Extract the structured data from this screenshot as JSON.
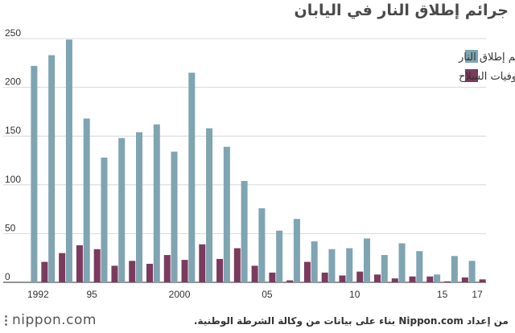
{
  "title": "جرائم إطلاق النار في اليابان",
  "source": "من إعداد Nippon.com بناء على بيانات من وكالة الشرطة الوطنية.",
  "brand": "nippon.com",
  "chart_data": {
    "type": "bar",
    "categories": [
      "1992",
      "1993",
      "1994",
      "1995",
      "1996",
      "1997",
      "1998",
      "1999",
      "2000",
      "2001",
      "2002",
      "2003",
      "2004",
      "2005",
      "2006",
      "2007",
      "2008",
      "2009",
      "2010",
      "2011",
      "2012",
      "2013",
      "2014",
      "2015",
      "2016",
      "2017"
    ],
    "tick_labels": [
      {
        "index": 0,
        "label": "1992"
      },
      {
        "index": 3,
        "label": "95"
      },
      {
        "index": 8,
        "label": "2000"
      },
      {
        "index": 13,
        "label": "05"
      },
      {
        "index": 18,
        "label": "10"
      },
      {
        "index": 23,
        "label": "15"
      },
      {
        "index": 25,
        "label": "17"
      }
    ],
    "series": [
      {
        "name": "جرائم إطلاق النار",
        "color": "#7fa4b2",
        "values": [
          222,
          233,
          249,
          168,
          128,
          148,
          154,
          162,
          134,
          215,
          158,
          139,
          104,
          76,
          53,
          65,
          42,
          34,
          35,
          45,
          28,
          40,
          32,
          8,
          27,
          22
        ]
      },
      {
        "name": "وفيات السلاح",
        "color": "#7b3a5e",
        "values": [
          21,
          30,
          38,
          34,
          17,
          22,
          19,
          28,
          23,
          39,
          24,
          35,
          17,
          10,
          2,
          21,
          10,
          7,
          11,
          8,
          4,
          6,
          6,
          1,
          5,
          3
        ]
      }
    ],
    "y_ticks": [
      0,
      50,
      100,
      150,
      200,
      250
    ],
    "ylim": [
      0,
      250
    ],
    "grid": true,
    "legend_position": "top-right"
  }
}
